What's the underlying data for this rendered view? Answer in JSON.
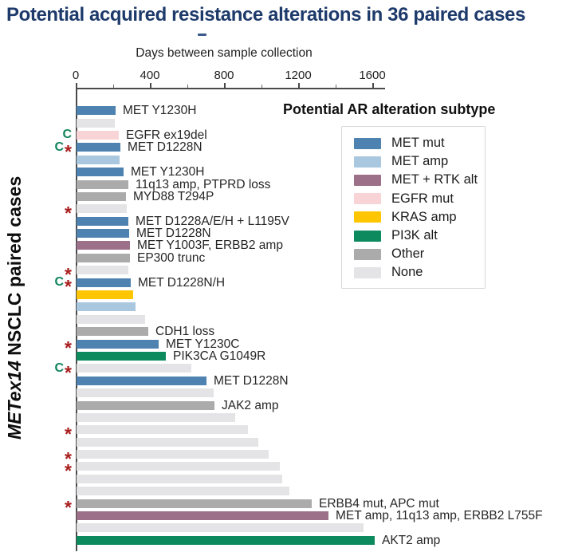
{
  "chart_data": {
    "type": "bar",
    "orientation": "horizontal",
    "title": "Potential acquired resistance alterations in 36 paired cases",
    "xlabel": "Days between sample collection",
    "ylabel": "METex14 NSCLC paired cases",
    "ylabel_italic": "METex14",
    "ylabel_rest": " NSCLC paired cases",
    "xlim": [
      0,
      1670
    ],
    "x_ticks": [
      0,
      400,
      800,
      1200,
      1600
    ],
    "x_minor_ticks": [
      200,
      600,
      1000,
      1400
    ],
    "grid": false,
    "legend": {
      "title": "Potential AR alteration subtype",
      "position": "upper right",
      "items": [
        {
          "key": "met_mut",
          "label": "MET mut",
          "color": "#4e82b0"
        },
        {
          "key": "met_amp",
          "label": "MET amp",
          "color": "#a9c7de"
        },
        {
          "key": "met_rtk",
          "label": "MET + RTK alt",
          "color": "#9c7088"
        },
        {
          "key": "egfr_mut",
          "label": "EGFR mut",
          "color": "#f8d4d7"
        },
        {
          "key": "kras_amp",
          "label": "KRAS amp",
          "color": "#fdc502"
        },
        {
          "key": "pi3k_alt",
          "label": "PI3K alt",
          "color": "#0e8a5f"
        },
        {
          "key": "other",
          "label": "Other",
          "color": "#ababab"
        },
        {
          "key": "none",
          "label": "None",
          "color": "#e4e4e6"
        }
      ]
    },
    "annotation_colors": {
      "C": "#12855c",
      "star": "#a81d1d"
    },
    "bars": [
      {
        "label": "MET Y1230H",
        "days": 210,
        "subtype": "met_mut",
        "annotation": ""
      },
      {
        "label": "",
        "days": 205,
        "subtype": "none",
        "annotation": ""
      },
      {
        "label": "EGFR ex19del",
        "days": 228,
        "subtype": "egfr_mut",
        "annotation": "C"
      },
      {
        "label": "MET D1228N",
        "days": 237,
        "subtype": "met_mut",
        "annotation": "C*"
      },
      {
        "label": "",
        "days": 232,
        "subtype": "met_amp",
        "annotation": ""
      },
      {
        "label": "MET Y1230H",
        "days": 254,
        "subtype": "met_mut",
        "annotation": ""
      },
      {
        "label": "11q13 amp, PTPRD loss",
        "days": 280,
        "subtype": "other",
        "annotation": ""
      },
      {
        "label": "MYD88 T294P",
        "days": 267,
        "subtype": "other",
        "annotation": ""
      },
      {
        "label": "",
        "days": 271,
        "subtype": "none",
        "annotation": "*"
      },
      {
        "label": "MET D1228A/E/H + L1195V",
        "days": 280,
        "subtype": "met_mut",
        "annotation": ""
      },
      {
        "label": "MET D1228N",
        "days": 284,
        "subtype": "met_mut",
        "annotation": ""
      },
      {
        "label": "MET Y1003F, ERBB2 amp",
        "days": 288,
        "subtype": "met_rtk",
        "annotation": ""
      },
      {
        "label": "EP300 trunc",
        "days": 288,
        "subtype": "other",
        "annotation": ""
      },
      {
        "label": "",
        "days": 280,
        "subtype": "none",
        "annotation": "*"
      },
      {
        "label": "MET D1228N/H",
        "days": 292,
        "subtype": "met_mut",
        "annotation": "C*"
      },
      {
        "label": "",
        "days": 305,
        "subtype": "kras_amp",
        "annotation": ""
      },
      {
        "label": "",
        "days": 318,
        "subtype": "met_amp",
        "annotation": ""
      },
      {
        "label": "",
        "days": 370,
        "subtype": "none",
        "annotation": ""
      },
      {
        "label": "CDH1 loss",
        "days": 387,
        "subtype": "other",
        "annotation": ""
      },
      {
        "label": "MET Y1230C",
        "days": 443,
        "subtype": "met_mut",
        "annotation": "*"
      },
      {
        "label": "PIK3CA G1049R",
        "days": 482,
        "subtype": "pi3k_alt",
        "annotation": ""
      },
      {
        "label": "",
        "days": 619,
        "subtype": "none",
        "annotation": "C*"
      },
      {
        "label": "MET D1228N",
        "days": 701,
        "subtype": "met_mut",
        "annotation": ""
      },
      {
        "label": "",
        "days": 740,
        "subtype": "none",
        "annotation": ""
      },
      {
        "label": "JAK2 amp",
        "days": 744,
        "subtype": "other",
        "annotation": ""
      },
      {
        "label": "",
        "days": 856,
        "subtype": "none",
        "annotation": ""
      },
      {
        "label": "",
        "days": 925,
        "subtype": "none",
        "annotation": "*"
      },
      {
        "label": "",
        "days": 981,
        "subtype": "none",
        "annotation": ""
      },
      {
        "label": "",
        "days": 1036,
        "subtype": "none",
        "annotation": "*"
      },
      {
        "label": "",
        "days": 1096,
        "subtype": "none",
        "annotation": "*"
      },
      {
        "label": "",
        "days": 1110,
        "subtype": "none",
        "annotation": ""
      },
      {
        "label": "",
        "days": 1148,
        "subtype": "none",
        "annotation": ""
      },
      {
        "label": "ERBB4 mut, APC mut",
        "days": 1269,
        "subtype": "other",
        "annotation": "*"
      },
      {
        "label": "MET amp, 11q13 amp, ERBB2 L755F",
        "days": 1359,
        "subtype": "met_rtk",
        "annotation": ""
      },
      {
        "label": "",
        "days": 1548,
        "subtype": "none",
        "annotation": ""
      },
      {
        "label": "AKT2 amp",
        "days": 1610,
        "subtype": "pi3k_alt",
        "annotation": ""
      }
    ]
  }
}
